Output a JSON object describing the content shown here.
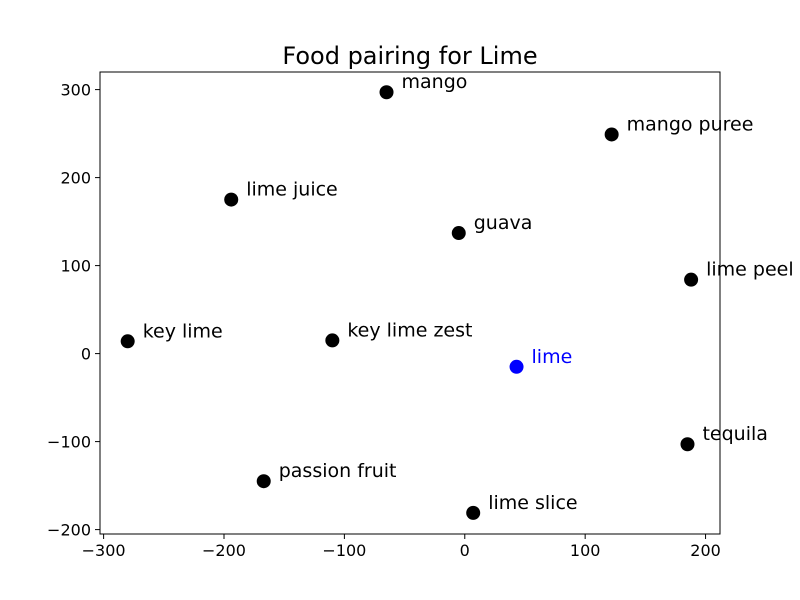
{
  "chart_data": {
    "type": "scatter",
    "title": "Food pairing for Lime",
    "xlabel": "",
    "ylabel": "",
    "xlim": [
      -303,
      212
    ],
    "ylim": [
      -205,
      320
    ],
    "xticks": [
      -300,
      -200,
      -100,
      0,
      100,
      200
    ],
    "yticks": [
      -200,
      -100,
      0,
      100,
      200,
      300
    ],
    "xtick_labels": [
      "−300",
      "−200",
      "−100",
      "0",
      "100",
      "200"
    ],
    "ytick_labels": [
      "−200",
      "−100",
      "0",
      "100",
      "200",
      "300"
    ],
    "grid": false,
    "points": [
      {
        "label": "mango",
        "x": -65,
        "y": 297,
        "color": "#000000"
      },
      {
        "label": "mango puree",
        "x": 122,
        "y": 249,
        "color": "#000000"
      },
      {
        "label": "lime juice",
        "x": -194,
        "y": 175,
        "color": "#000000"
      },
      {
        "label": "guava",
        "x": -5,
        "y": 137,
        "color": "#000000"
      },
      {
        "label": "lime peel",
        "x": 188,
        "y": 84,
        "color": "#000000"
      },
      {
        "label": "key lime",
        "x": -280,
        "y": 14,
        "color": "#000000"
      },
      {
        "label": "key lime zest",
        "x": -110,
        "y": 15,
        "color": "#000000"
      },
      {
        "label": "lime",
        "x": 43,
        "y": -15,
        "color": "#0000ff"
      },
      {
        "label": "tequila",
        "x": 185,
        "y": -103,
        "color": "#000000"
      },
      {
        "label": "passion fruit",
        "x": -167,
        "y": -145,
        "color": "#000000"
      },
      {
        "label": "lime slice",
        "x": 7,
        "y": -181,
        "color": "#000000"
      }
    ]
  }
}
